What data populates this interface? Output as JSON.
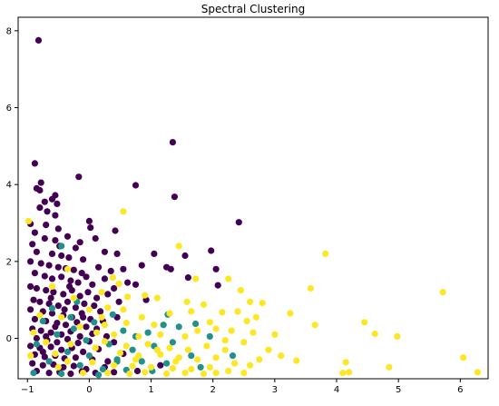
{
  "chart_data": {
    "type": "scatter",
    "title": "Spectral Clustering",
    "xlabel": "",
    "ylabel": "",
    "xlim": [
      -1.15,
      6.45
    ],
    "ylim": [
      -1.05,
      8.35
    ],
    "xticks": [
      -1,
      0,
      1,
      2,
      3,
      4,
      5,
      6
    ],
    "yticks": [
      0,
      2,
      4,
      6,
      8
    ],
    "grid": false,
    "legend": "none",
    "series": [
      {
        "cluster": 0,
        "color": "#440154",
        "points": [
          [
            -0.82,
            7.75
          ],
          [
            1.35,
            5.1
          ],
          [
            -0.88,
            4.55
          ],
          [
            -0.17,
            4.2
          ],
          [
            -0.78,
            4.05
          ],
          [
            0.75,
            3.98
          ],
          [
            -0.85,
            3.9
          ],
          [
            -0.8,
            3.85
          ],
          [
            -0.55,
            3.72
          ],
          [
            -0.6,
            3.62
          ],
          [
            -0.72,
            3.55
          ],
          [
            -0.52,
            3.5
          ],
          [
            -0.8,
            3.4
          ],
          [
            -0.68,
            3.3
          ],
          [
            -0.55,
            3.2
          ],
          [
            1.38,
            3.68
          ],
          [
            2.42,
            3.02
          ],
          [
            -0.95,
            2.98
          ],
          [
            -0.7,
            2.95
          ],
          [
            -0.5,
            2.85
          ],
          [
            -0.35,
            2.65
          ],
          [
            0.0,
            3.05
          ],
          [
            0.02,
            2.88
          ],
          [
            0.42,
            2.8
          ],
          [
            -0.88,
            2.75
          ],
          [
            -0.72,
            2.6
          ],
          [
            -0.55,
            2.55
          ],
          [
            -0.15,
            2.5
          ],
          [
            0.1,
            2.6
          ],
          [
            -0.92,
            2.45
          ],
          [
            -0.48,
            2.4
          ],
          [
            -0.22,
            2.35
          ],
          [
            -0.85,
            2.25
          ],
          [
            -0.6,
            2.2
          ],
          [
            -0.45,
            2.15
          ],
          [
            -0.33,
            2.1
          ],
          [
            -0.1,
            2.05
          ],
          [
            0.25,
            2.25
          ],
          [
            0.45,
            2.2
          ],
          [
            1.05,
            2.2
          ],
          [
            1.55,
            2.15
          ],
          [
            1.97,
            2.28
          ],
          [
            -0.95,
            2.0
          ],
          [
            -0.78,
            1.95
          ],
          [
            -0.65,
            1.9
          ],
          [
            -0.5,
            1.85
          ],
          [
            -0.38,
            1.82
          ],
          [
            -0.25,
            1.78
          ],
          [
            -0.12,
            1.7
          ],
          [
            0.15,
            1.85
          ],
          [
            0.35,
            1.75
          ],
          [
            0.55,
            1.8
          ],
          [
            0.85,
            1.9
          ],
          [
            1.25,
            1.85
          ],
          [
            1.32,
            1.8
          ],
          [
            2.05,
            1.8
          ],
          [
            -0.88,
            1.7
          ],
          [
            -0.72,
            1.62
          ],
          [
            -0.6,
            1.55
          ],
          [
            -0.45,
            1.6
          ],
          [
            -0.3,
            1.5
          ],
          [
            -0.18,
            1.45
          ],
          [
            -0.05,
            1.6
          ],
          [
            0.05,
            1.4
          ],
          [
            0.25,
            1.55
          ],
          [
            0.4,
            1.3
          ],
          [
            0.62,
            1.45
          ],
          [
            0.75,
            1.4
          ],
          [
            1.6,
            1.58
          ],
          [
            2.08,
            1.38
          ],
          [
            -0.95,
            1.35
          ],
          [
            -0.85,
            1.3
          ],
          [
            -0.7,
            1.25
          ],
          [
            -0.58,
            1.2
          ],
          [
            -0.42,
            1.15
          ],
          [
            -0.28,
            1.25
          ],
          [
            -0.15,
            1.1
          ],
          [
            -0.02,
            1.2
          ],
          [
            0.12,
            1.05
          ],
          [
            0.3,
            1.15
          ],
          [
            0.48,
            0.95
          ],
          [
            0.92,
            1.0
          ],
          [
            -0.9,
            1.0
          ],
          [
            -0.8,
            0.95
          ],
          [
            -0.65,
            0.9
          ],
          [
            -0.5,
            0.85
          ],
          [
            -0.35,
            0.95
          ],
          [
            -0.22,
            0.8
          ],
          [
            -0.08,
            0.9
          ],
          [
            0.08,
            0.85
          ],
          [
            0.18,
            0.7
          ],
          [
            -0.95,
            0.75
          ],
          [
            -0.75,
            0.7
          ],
          [
            -0.6,
            0.65
          ],
          [
            -0.42,
            0.6
          ],
          [
            -0.28,
            0.55
          ],
          [
            -0.12,
            0.65
          ],
          [
            0.02,
            0.5
          ],
          [
            0.22,
            0.45
          ],
          [
            0.45,
            0.55
          ],
          [
            -0.88,
            0.5
          ],
          [
            -0.7,
            0.45
          ],
          [
            -0.52,
            0.4
          ],
          [
            -0.38,
            0.35
          ],
          [
            -0.2,
            0.42
          ],
          [
            -0.05,
            0.3
          ],
          [
            0.12,
            0.25
          ],
          [
            -0.92,
            0.25
          ],
          [
            -0.78,
            0.2
          ],
          [
            -0.62,
            0.15
          ],
          [
            -0.45,
            0.1
          ],
          [
            -0.3,
            0.18
          ],
          [
            -0.15,
            0.05
          ],
          [
            0.05,
            0.12
          ],
          [
            0.28,
            0.05
          ],
          [
            -0.85,
            0.0
          ],
          [
            -0.68,
            -0.05
          ],
          [
            -0.52,
            -0.1
          ],
          [
            -0.35,
            -0.02
          ],
          [
            -0.18,
            -0.12
          ],
          [
            0.0,
            -0.08
          ],
          [
            0.4,
            -0.1
          ],
          [
            -0.95,
            -0.2
          ],
          [
            -0.8,
            -0.25
          ],
          [
            -0.62,
            -0.22
          ],
          [
            -0.45,
            -0.3
          ],
          [
            -0.28,
            -0.25
          ],
          [
            -0.1,
            -0.35
          ],
          [
            0.15,
            -0.28
          ],
          [
            -0.88,
            -0.42
          ],
          [
            -0.72,
            -0.48
          ],
          [
            -0.55,
            -0.45
          ],
          [
            -0.4,
            -0.52
          ],
          [
            -0.22,
            -0.5
          ],
          [
            0.05,
            -0.55
          ],
          [
            0.55,
            -0.4
          ],
          [
            -0.92,
            -0.65
          ],
          [
            -0.75,
            -0.7
          ],
          [
            -0.58,
            -0.68
          ],
          [
            -0.42,
            -0.75
          ],
          [
            -0.25,
            -0.72
          ],
          [
            -0.05,
            -0.8
          ],
          [
            0.25,
            -0.75
          ],
          [
            -0.85,
            -0.85
          ],
          [
            -0.65,
            -0.9
          ],
          [
            -0.48,
            -0.88
          ],
          [
            -0.3,
            -0.92
          ],
          [
            -0.12,
            -0.86
          ],
          [
            0.1,
            -0.9
          ],
          [
            0.4,
            -0.88
          ],
          [
            0.78,
            -0.85
          ],
          [
            1.15,
            -0.7
          ],
          [
            -0.7,
            0.05
          ],
          [
            -0.55,
            0.3
          ],
          [
            -0.4,
            0.75
          ],
          [
            -0.62,
            1.05
          ],
          [
            -0.32,
            1.35
          ],
          [
            -0.75,
            -0.35
          ],
          [
            0.3,
            -0.6
          ],
          [
            -0.1,
            0.55
          ]
        ]
      },
      {
        "cluster": 1,
        "color": "#21918c",
        "points": [
          [
            -0.45,
            2.4
          ],
          [
            1.27,
            0.62
          ],
          [
            -0.2,
            0.95
          ],
          [
            0.38,
            0.62
          ],
          [
            1.72,
            0.38
          ],
          [
            2.32,
            -0.45
          ],
          [
            -0.6,
            0.78
          ],
          [
            -0.3,
            0.55
          ],
          [
            0.08,
            0.42
          ],
          [
            0.55,
            0.2
          ],
          [
            0.95,
            0.15
          ],
          [
            1.2,
            0.35
          ],
          [
            1.45,
            0.3
          ],
          [
            1.95,
            0.05
          ],
          [
            -0.75,
            0.45
          ],
          [
            -0.52,
            0.1
          ],
          [
            -0.05,
            -0.05
          ],
          [
            0.32,
            -0.15
          ],
          [
            0.7,
            -0.3
          ],
          [
            1.05,
            -0.2
          ],
          [
            1.35,
            -0.1
          ],
          [
            1.65,
            -0.45
          ],
          [
            -0.85,
            -0.15
          ],
          [
            -0.35,
            -0.35
          ],
          [
            0.0,
            -0.45
          ],
          [
            0.45,
            -0.55
          ],
          [
            0.85,
            -0.6
          ],
          [
            1.25,
            -0.65
          ],
          [
            1.8,
            -0.75
          ],
          [
            -0.65,
            -0.6
          ],
          [
            -0.15,
            -0.7
          ],
          [
            0.22,
            -0.8
          ],
          [
            0.6,
            -0.82
          ],
          [
            1.02,
            -0.85
          ],
          [
            -0.9,
            -0.9
          ],
          [
            -0.45,
            -0.92
          ],
          [
            0.15,
            -0.95
          ],
          [
            0.45,
            -0.6
          ],
          [
            -0.25,
            0.25
          ],
          [
            0.75,
            0.05
          ]
        ]
      },
      {
        "cluster": 2,
        "color": "#fde725",
        "points": [
          [
            5.72,
            1.2
          ],
          [
            3.82,
            2.2
          ],
          [
            3.58,
            1.3
          ],
          [
            3.65,
            0.35
          ],
          [
            4.45,
            0.42
          ],
          [
            4.62,
            0.12
          ],
          [
            4.98,
            0.05
          ],
          [
            6.05,
            -0.5
          ],
          [
            6.28,
            -0.88
          ],
          [
            4.85,
            -0.75
          ],
          [
            4.15,
            -0.62
          ],
          [
            3.35,
            -0.58
          ],
          [
            4.1,
            -0.9
          ],
          [
            4.2,
            -0.88
          ],
          [
            0.55,
            3.3
          ],
          [
            1.45,
            2.4
          ],
          [
            1.72,
            1.55
          ],
          [
            2.45,
            1.25
          ],
          [
            2.25,
            1.55
          ],
          [
            0.38,
            1.58
          ],
          [
            0.48,
            1.42
          ],
          [
            0.2,
            1.2
          ],
          [
            -0.35,
            1.8
          ],
          [
            0.62,
            1.08
          ],
          [
            0.9,
            1.12
          ],
          [
            1.1,
            1.05
          ],
          [
            1.58,
            0.95
          ],
          [
            1.85,
            0.88
          ],
          [
            2.6,
            0.95
          ],
          [
            2.8,
            0.92
          ],
          [
            3.25,
            0.65
          ],
          [
            2.15,
            0.68
          ],
          [
            2.7,
            0.55
          ],
          [
            1.3,
            0.65
          ],
          [
            1.65,
            0.7
          ],
          [
            0.85,
            0.55
          ],
          [
            1.95,
            0.42
          ],
          [
            2.55,
            0.45
          ],
          [
            0.25,
            0.35
          ],
          [
            0.6,
            0.4
          ],
          [
            1.05,
            0.35
          ],
          [
            2.05,
            0.25
          ],
          [
            2.3,
            0.2
          ],
          [
            2.65,
            0.15
          ],
          [
            3.0,
            0.1
          ],
          [
            -0.9,
            0.15
          ],
          [
            0.12,
            0.15
          ],
          [
            0.4,
            0.1
          ],
          [
            0.8,
            0.05
          ],
          [
            1.15,
            0.1
          ],
          [
            1.55,
            0.05
          ],
          [
            2.2,
            -0.05
          ],
          [
            2.5,
            -0.1
          ],
          [
            -0.7,
            -0.1
          ],
          [
            0.25,
            -0.08
          ],
          [
            0.6,
            -0.2
          ],
          [
            0.95,
            -0.15
          ],
          [
            1.3,
            -0.25
          ],
          [
            1.6,
            -0.3
          ],
          [
            1.9,
            -0.2
          ],
          [
            2.2,
            -0.3
          ],
          [
            2.75,
            -0.55
          ],
          [
            -0.55,
            -0.4
          ],
          [
            0.1,
            -0.25
          ],
          [
            0.5,
            -0.38
          ],
          [
            0.8,
            -0.45
          ],
          [
            1.15,
            -0.42
          ],
          [
            1.45,
            -0.5
          ],
          [
            1.75,
            -0.55
          ],
          [
            2.05,
            -0.5
          ],
          [
            2.35,
            -0.65
          ],
          [
            2.6,
            -0.7
          ],
          [
            -0.35,
            -0.6
          ],
          [
            0.05,
            -0.62
          ],
          [
            0.4,
            -0.7
          ],
          [
            0.7,
            -0.72
          ],
          [
            1.0,
            -0.75
          ],
          [
            1.35,
            -0.78
          ],
          [
            1.65,
            -0.8
          ],
          [
            1.95,
            -0.75
          ],
          [
            2.25,
            -0.85
          ],
          [
            2.5,
            -0.9
          ],
          [
            -0.1,
            -0.9
          ],
          [
            0.3,
            -0.9
          ],
          [
            0.65,
            -0.92
          ],
          [
            0.9,
            -0.88
          ],
          [
            1.25,
            -0.92
          ],
          [
            1.55,
            -0.9
          ],
          [
            1.85,
            -0.92
          ],
          [
            2.05,
            -0.9
          ],
          [
            -0.98,
            3.05
          ],
          [
            -0.6,
            1.35
          ],
          [
            -0.25,
            1.05
          ],
          [
            0.0,
            0.75
          ],
          [
            -0.45,
            0.55
          ],
          [
            -0.15,
            0.3
          ],
          [
            0.3,
            0.8
          ],
          [
            -0.8,
            0.6
          ],
          [
            -0.5,
            -0.75
          ],
          [
            0.2,
            0.55
          ],
          [
            1.4,
            -0.6
          ],
          [
            0.75,
            -0.55
          ],
          [
            1.1,
            -0.3
          ],
          [
            2.9,
            -0.3
          ],
          [
            3.1,
            -0.45
          ],
          [
            0.55,
            0.75
          ],
          [
            -0.3,
            -0.15
          ],
          [
            -0.95,
            -0.45
          ],
          [
            2.4,
            0.7
          ],
          [
            1.75,
            0.2
          ]
        ]
      }
    ]
  }
}
